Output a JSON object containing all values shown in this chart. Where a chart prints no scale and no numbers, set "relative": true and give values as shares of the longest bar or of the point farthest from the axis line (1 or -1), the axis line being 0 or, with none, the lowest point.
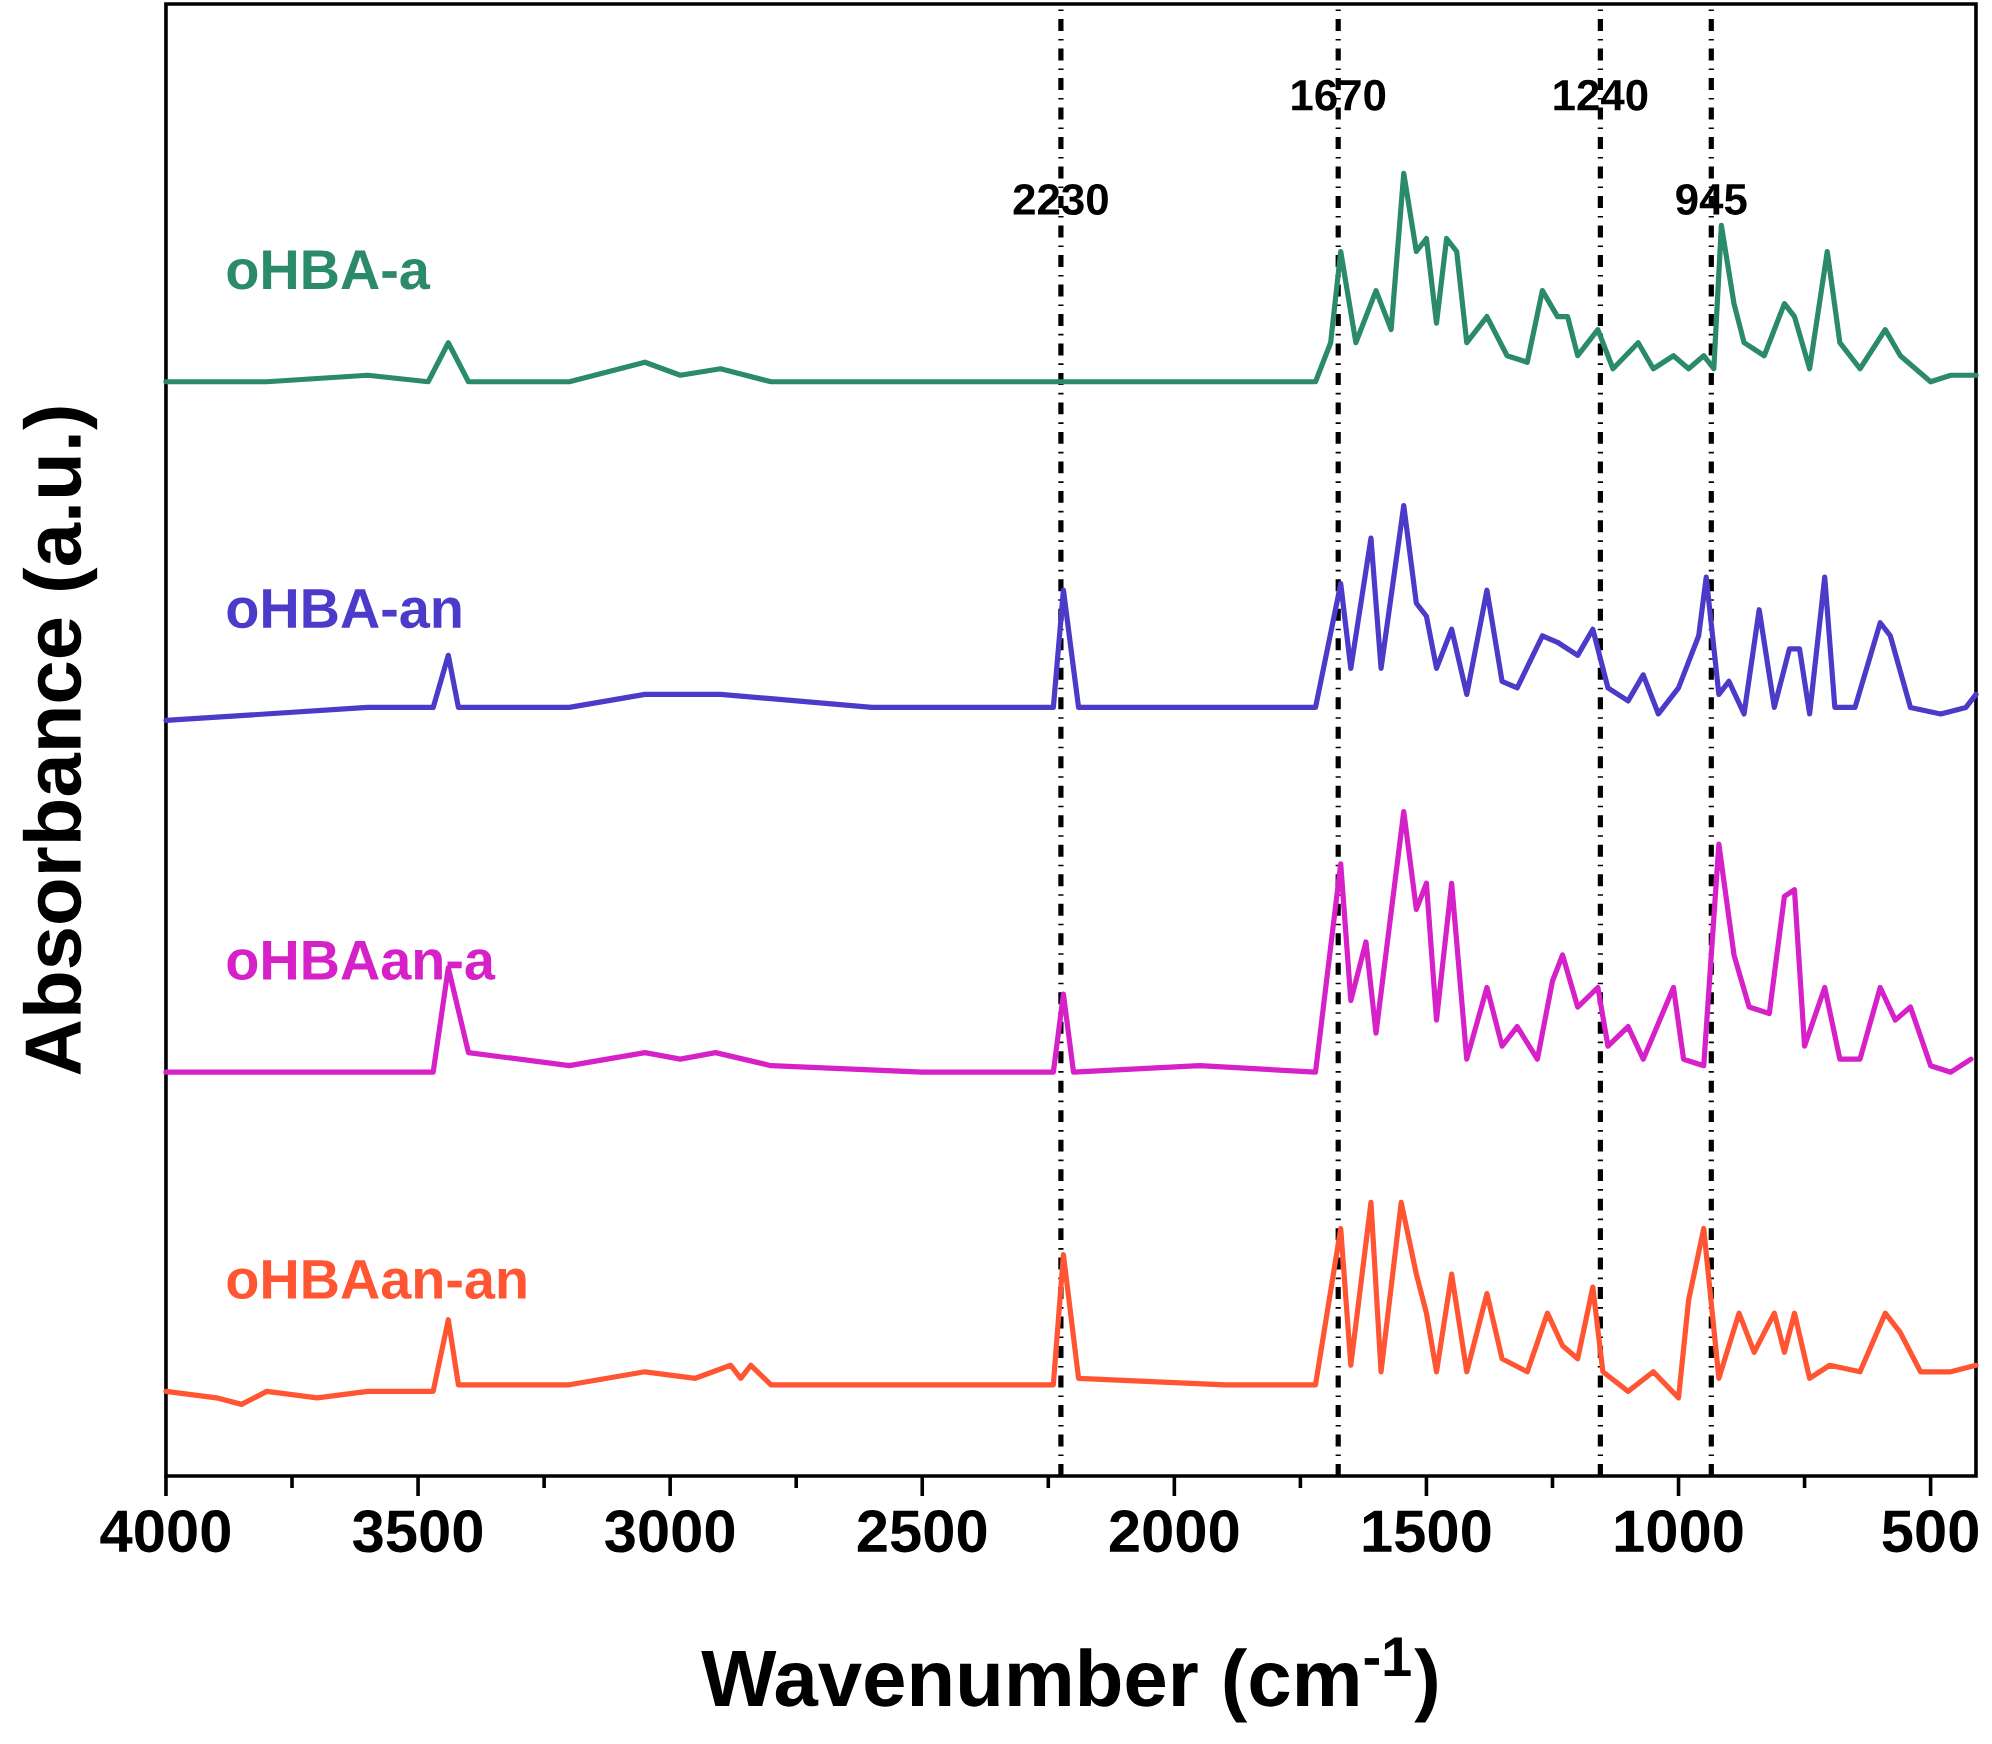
{
  "chart_data": {
    "type": "line",
    "relative": true,
    "xlabel": "Wavenumber (cm$^{-1}$)",
    "ylabel": "Absorbance (a.u.)",
    "xlim": [
      4000,
      410
    ],
    "xticks": [
      4000,
      3500,
      3000,
      2500,
      2000,
      1500,
      1000,
      500
    ],
    "tick_labels": "x",
    "marker": "none",
    "line_style": "solid",
    "series": [
      {
        "name": "oHBA-a",
        "color": "#2a8a6a",
        "x": [
          4000,
          3800,
          3600,
          3480,
          3440,
          3400,
          3200,
          3050,
          2980,
          2900,
          2800,
          2500,
          2200,
          1900,
          1720,
          1690,
          1670,
          1640,
          1600,
          1570,
          1545,
          1520,
          1500,
          1480,
          1460,
          1440,
          1420,
          1380,
          1340,
          1300,
          1270,
          1240,
          1220,
          1200,
          1160,
          1130,
          1080,
          1050,
          1010,
          980,
          950,
          930,
          915,
          890,
          870,
          830,
          790,
          770,
          740,
          705,
          680,
          640,
          590,
          560,
          500,
          460,
          410
        ],
        "values": [
          0.84,
          0.84,
          0.845,
          0.84,
          0.87,
          0.84,
          0.84,
          0.855,
          0.845,
          0.85,
          0.84,
          0.84,
          0.84,
          0.84,
          0.84,
          0.87,
          0.94,
          0.87,
          0.91,
          0.88,
          1.0,
          0.94,
          0.95,
          0.885,
          0.95,
          0.94,
          0.87,
          0.89,
          0.86,
          0.855,
          0.91,
          0.89,
          0.89,
          0.86,
          0.88,
          0.85,
          0.87,
          0.85,
          0.86,
          0.85,
          0.86,
          0.85,
          0.96,
          0.9,
          0.87,
          0.86,
          0.9,
          0.89,
          0.85,
          0.94,
          0.87,
          0.85,
          0.88,
          0.86,
          0.84,
          0.845,
          0.845
        ]
      },
      {
        "name": "oHBA-an",
        "color": "#4b3bc8",
        "x": [
          4000,
          3800,
          3600,
          3470,
          3440,
          3420,
          3200,
          3050,
          2900,
          2600,
          2300,
          2240,
          2220,
          2190,
          2000,
          1900,
          1720,
          1670,
          1650,
          1610,
          1590,
          1545,
          1520,
          1500,
          1480,
          1450,
          1420,
          1380,
          1350,
          1320,
          1270,
          1240,
          1200,
          1170,
          1140,
          1100,
          1070,
          1040,
          1000,
          960,
          945,
          920,
          900,
          870,
          840,
          810,
          780,
          760,
          740,
          710,
          690,
          650,
          600,
          580,
          540,
          480,
          430,
          410
        ],
        "values": [
          0.58,
          0.585,
          0.59,
          0.59,
          0.63,
          0.59,
          0.59,
          0.6,
          0.6,
          0.59,
          0.59,
          0.59,
          0.68,
          0.59,
          0.59,
          0.59,
          0.59,
          0.685,
          0.62,
          0.72,
          0.62,
          0.745,
          0.67,
          0.66,
          0.62,
          0.65,
          0.6,
          0.68,
          0.61,
          0.605,
          0.645,
          0.64,
          0.63,
          0.65,
          0.605,
          0.595,
          0.615,
          0.585,
          0.605,
          0.645,
          0.69,
          0.6,
          0.61,
          0.585,
          0.665,
          0.59,
          0.635,
          0.635,
          0.585,
          0.69,
          0.59,
          0.59,
          0.655,
          0.645,
          0.59,
          0.585,
          0.59,
          0.6
        ]
      },
      {
        "name": "oHBAan-a",
        "color": "#d620c8",
        "x": [
          4000,
          3800,
          3600,
          3470,
          3440,
          3400,
          3200,
          3050,
          2980,
          2910,
          2800,
          2500,
          2240,
          2220,
          2200,
          1950,
          1720,
          1670,
          1650,
          1620,
          1600,
          1545,
          1520,
          1500,
          1480,
          1450,
          1420,
          1380,
          1350,
          1320,
          1280,
          1250,
          1230,
          1200,
          1160,
          1140,
          1100,
          1070,
          1010,
          990,
          950,
          920,
          890,
          860,
          820,
          790,
          770,
          750,
          710,
          680,
          640,
          600,
          570,
          540,
          500,
          460,
          420
        ],
        "values": [
          0.31,
          0.31,
          0.31,
          0.31,
          0.39,
          0.325,
          0.315,
          0.325,
          0.32,
          0.325,
          0.315,
          0.31,
          0.31,
          0.37,
          0.31,
          0.315,
          0.31,
          0.47,
          0.365,
          0.41,
          0.34,
          0.51,
          0.435,
          0.455,
          0.35,
          0.455,
          0.32,
          0.375,
          0.33,
          0.345,
          0.32,
          0.38,
          0.4,
          0.36,
          0.375,
          0.33,
          0.345,
          0.32,
          0.375,
          0.32,
          0.315,
          0.485,
          0.4,
          0.36,
          0.355,
          0.445,
          0.45,
          0.33,
          0.375,
          0.32,
          0.32,
          0.375,
          0.35,
          0.36,
          0.315,
          0.31,
          0.32
        ]
      },
      {
        "name": "oHBAan-an",
        "color": "#ff5533",
        "x": [
          4000,
          3900,
          3850,
          3800,
          3700,
          3600,
          3470,
          3440,
          3420,
          3200,
          3050,
          2950,
          2880,
          2860,
          2840,
          2800,
          2600,
          2300,
          2240,
          2220,
          2190,
          1900,
          1720,
          1670,
          1650,
          1610,
          1590,
          1550,
          1520,
          1500,
          1480,
          1450,
          1420,
          1380,
          1350,
          1300,
          1260,
          1230,
          1200,
          1170,
          1150,
          1100,
          1050,
          1000,
          980,
          950,
          920,
          880,
          850,
          810,
          790,
          770,
          740,
          700,
          640,
          590,
          560,
          520,
          460,
          410
        ],
        "values": [
          0.065,
          0.06,
          0.055,
          0.065,
          0.06,
          0.065,
          0.065,
          0.12,
          0.07,
          0.07,
          0.08,
          0.075,
          0.085,
          0.075,
          0.085,
          0.07,
          0.07,
          0.07,
          0.07,
          0.17,
          0.075,
          0.07,
          0.07,
          0.19,
          0.085,
          0.21,
          0.08,
          0.21,
          0.155,
          0.125,
          0.08,
          0.155,
          0.08,
          0.14,
          0.09,
          0.08,
          0.125,
          0.1,
          0.09,
          0.145,
          0.08,
          0.065,
          0.08,
          0.06,
          0.135,
          0.19,
          0.075,
          0.125,
          0.095,
          0.125,
          0.095,
          0.125,
          0.075,
          0.085,
          0.08,
          0.125,
          0.11,
          0.08,
          0.08,
          0.085
        ]
      }
    ],
    "ref_lines": [
      {
        "axis": "x",
        "value": 2225,
        "color": "#000000",
        "line_style": "dashdot"
      },
      {
        "axis": "x",
        "value": 1675,
        "color": "#000000",
        "line_style": "dashdot"
      },
      {
        "axis": "x",
        "value": 1155,
        "color": "#000000",
        "line_style": "dashdot"
      },
      {
        "axis": "x",
        "value": 935,
        "color": "#000000",
        "line_style": "dashdot"
      }
    ],
    "annotations": [
      {
        "text": "2230",
        "x": 2225,
        "y": 0.98
      },
      {
        "text": "1670",
        "x": 1675,
        "y": 1.06
      },
      {
        "text": "1240",
        "x": 1155,
        "y": 1.06
      },
      {
        "text": "945",
        "x": 935,
        "y": 0.98
      }
    ]
  }
}
